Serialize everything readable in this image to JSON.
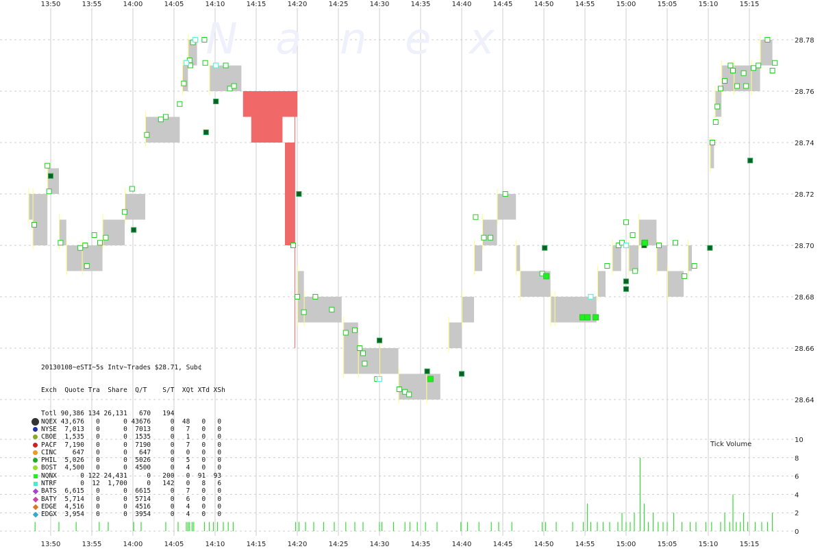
{
  "watermark": "N a n e x",
  "time_labels": [
    "13:50",
    "13:55",
    "14:00",
    "14:05",
    "14:10",
    "14:15",
    "14:20",
    "14:25",
    "14:30",
    "14:35",
    "14:40",
    "14:45",
    "14:50",
    "14:55",
    "15:00",
    "15:05",
    "15:10",
    "15:15"
  ],
  "price_labels": [
    "28.78",
    "28.76",
    "28.74",
    "28.72",
    "28.70",
    "28.68",
    "28.66",
    "28.64"
  ],
  "volume_labels": [
    "10",
    "8",
    "6",
    "4",
    "2",
    "0"
  ],
  "volume_title": "Tick Volume",
  "colors": {
    "grid": "#cccccc",
    "quote_gray": "#c8c8c8",
    "halt_red": "#f06868",
    "trade_green": "#22cc22",
    "trade_dark": "#0d5e2a",
    "cyan": "#5ff0d8",
    "yellow": "#ffff80"
  },
  "stats": {
    "header1": "20130108~eSTI~5s Intv~Trades $28.71, Sub¢",
    "header2": "Exch  Quote Tra  Share  Q/T    S/T  XQt XTd XSh",
    "rows": [
      {
        "text": "Totl 90,386 134 26,131   670   194",
        "color": null,
        "shape": "none"
      },
      {
        "text": "NQEX 43,676   0      0 43676     0  48   0   0",
        "color": "#333333",
        "shape": "big"
      },
      {
        "text": "NYSE  7,013   0      0  7013     0   7   0   0",
        "color": "#2233aa",
        "shape": "dot"
      },
      {
        "text": "CBOE  1,535   0      0  1535     0   1   0   0",
        "color": "#88aa22",
        "shape": "dot"
      },
      {
        "text": "PACF  7,190   0      0  7190     0   7   0   0",
        "color": "#cc2222",
        "shape": "dot"
      },
      {
        "text": "CINC    647   0      0   647     0   0   0   0",
        "color": "#ee9922",
        "shape": "dot"
      },
      {
        "text": "PHIL  5,026   0      0  5026     0   5   0   0",
        "color": "#22aa22",
        "shape": "dot"
      },
      {
        "text": "BOST  4,500   0      0  4500     0   4   0   0",
        "color": "#99dd33",
        "shape": "dot"
      },
      {
        "text": "NQNX      0 122 24,431     0   200   0  91  93",
        "color": "#22ee22",
        "shape": "square"
      },
      {
        "text": "NTRF      0  12  1,700     0   142   0   8   6",
        "color": "#44eecc",
        "shape": "square"
      },
      {
        "text": "BATS  6,615   0      0  6615     0   7   0   0",
        "color": "#aa44cc",
        "shape": "diamond"
      },
      {
        "text": "BATY  5,714   0      0  5714     0   6   0   0",
        "color": "#cc44aa",
        "shape": "diamond"
      },
      {
        "text": "EDGE  4,516   0      0  4516     0   4   0   0",
        "color": "#dd7722",
        "shape": "diamond"
      },
      {
        "text": "EDGX  3,954   0      0  3954     0   4   0   0",
        "color": "#33aacc",
        "shape": "diamond"
      }
    ]
  },
  "chart_data": {
    "type": "line",
    "title": "20130108~eSTI~5s Intv~Trades $28.71, Sub¢",
    "x_ticks": [
      "13:50",
      "13:55",
      "14:00",
      "14:05",
      "14:10",
      "14:15",
      "14:20",
      "14:25",
      "14:30",
      "14:35",
      "14:40",
      "14:45",
      "14:50",
      "14:55",
      "15:00",
      "15:05",
      "15:10",
      "15:15"
    ],
    "x_range": [
      "13:47",
      "15:19"
    ],
    "ylim": [
      28.615,
      28.79
    ],
    "volume_ylim": [
      0,
      10
    ],
    "grid": true,
    "quote_bands": [
      {
        "t0": "13:47.3",
        "t1": "13:47.8",
        "lo": 28.71,
        "hi": 28.72
      },
      {
        "t0": "13:47.8",
        "t1": "13:49.6",
        "lo": 28.7,
        "hi": 28.72
      },
      {
        "t0": "13:49.6",
        "t1": "13:51.0",
        "lo": 28.72,
        "hi": 28.73
      },
      {
        "t0": "13:51.0",
        "t1": "13:51.9",
        "lo": 28.7,
        "hi": 28.71
      },
      {
        "t0": "13:51.9",
        "t1": "13:53.8",
        "lo": 28.69,
        "hi": 28.7
      },
      {
        "t0": "13:53.8",
        "t1": "13:56.3",
        "lo": 28.69,
        "hi": 28.7
      },
      {
        "t0": "13:56.3",
        "t1": "13:59.0",
        "lo": 28.7,
        "hi": 28.71
      },
      {
        "t0": "13:59.0",
        "t1": "14:01.5",
        "lo": 28.71,
        "hi": 28.72
      },
      {
        "t0": "14:01.5",
        "t1": "14:05.7",
        "lo": 28.74,
        "hi": 28.75
      },
      {
        "t0": "14:06.0",
        "t1": "14:06.7",
        "lo": 28.76,
        "hi": 28.77
      },
      {
        "t0": "14:06.7",
        "t1": "14:07.8",
        "lo": 28.77,
        "hi": 28.78
      },
      {
        "t0": "14:09.3",
        "t1": "14:13.2",
        "lo": 28.76,
        "hi": 28.77
      },
      {
        "t0": "14:20.0",
        "t1": "14:20.8",
        "lo": 28.67,
        "hi": 28.69
      },
      {
        "t0": "14:20.8",
        "t1": "14:25.4",
        "lo": 28.67,
        "hi": 28.68
      },
      {
        "t0": "14:25.6",
        "t1": "14:27.4",
        "lo": 28.65,
        "hi": 28.67
      },
      {
        "t0": "14:27.4",
        "t1": "14:30.0",
        "lo": 28.65,
        "hi": 28.66
      },
      {
        "t0": "14:30.0",
        "t1": "14:32.3",
        "lo": 28.65,
        "hi": 28.66
      },
      {
        "t0": "14:32.3",
        "t1": "14:35.7",
        "lo": 28.64,
        "hi": 28.65
      },
      {
        "t0": "14:35.7",
        "t1": "14:37.4",
        "lo": 28.64,
        "hi": 28.65
      },
      {
        "t0": "14:38.4",
        "t1": "14:40.0",
        "lo": 28.66,
        "hi": 28.67
      },
      {
        "t0": "14:40.0",
        "t1": "14:41.5",
        "lo": 28.67,
        "hi": 28.68
      },
      {
        "t0": "14:41.5",
        "t1": "14:42.5",
        "lo": 28.69,
        "hi": 28.7
      },
      {
        "t0": "14:42.5",
        "t1": "14:44.3",
        "lo": 28.7,
        "hi": 28.71
      },
      {
        "t0": "14:44.3",
        "t1": "14:46.6",
        "lo": 28.71,
        "hi": 28.72
      },
      {
        "t0": "14:46.6",
        "t1": "14:47.1",
        "lo": 28.69,
        "hi": 28.7
      },
      {
        "t0": "14:47.1",
        "t1": "14:50.8",
        "lo": 28.68,
        "hi": 28.69
      },
      {
        "t0": "14:50.8",
        "t1": "14:51.3",
        "lo": 28.67,
        "hi": 28.68
      },
      {
        "t0": "14:51.3",
        "t1": "14:56.4",
        "lo": 28.67,
        "hi": 28.68
      },
      {
        "t0": "14:56.5",
        "t1": "14:57.5",
        "lo": 28.68,
        "hi": 28.69
      },
      {
        "t0": "14:58.3",
        "t1": "14:59.4",
        "lo": 28.69,
        "hi": 28.7
      },
      {
        "t0": "15:00.3",
        "t1": "15:01.5",
        "lo": 28.69,
        "hi": 28.7
      },
      {
        "t0": "15:01.5",
        "t1": "15:03.7",
        "lo": 28.7,
        "hi": 28.71
      },
      {
        "t0": "15:03.7",
        "t1": "15:05.0",
        "lo": 28.69,
        "hi": 28.7
      },
      {
        "t0": "15:05.0",
        "t1": "15:07.0",
        "lo": 28.68,
        "hi": 28.69
      },
      {
        "t0": "15:07.5",
        "t1": "15:08.0",
        "lo": 28.69,
        "hi": 28.7
      },
      {
        "t0": "15:10.2",
        "t1": "15:10.7",
        "lo": 28.73,
        "hi": 28.74
      },
      {
        "t0": "15:10.8",
        "t1": "15:11.6",
        "lo": 28.75,
        "hi": 28.76
      },
      {
        "t0": "15:11.6",
        "t1": "15:13.1",
        "lo": 28.76,
        "hi": 28.77
      },
      {
        "t0": "15:13.1",
        "t1": "15:15.2",
        "lo": 28.76,
        "hi": 28.77
      },
      {
        "t0": "15:15.2",
        "t1": "15:16.3",
        "lo": 28.76,
        "hi": 28.77
      },
      {
        "t0": "15:16.3",
        "t1": "15:17.8",
        "lo": 28.77,
        "hi": 28.78
      }
    ],
    "halt_region": [
      {
        "t0": "14:13.4",
        "t1": "14:20.0",
        "lo": 28.75,
        "hi": 28.76
      },
      {
        "t0": "14:14.4",
        "t1": "14:18.2",
        "lo": 28.74,
        "hi": 28.75
      },
      {
        "t0": "14:18.5",
        "t1": "14:19.7",
        "lo": 28.7,
        "hi": 28.74
      }
    ],
    "series": [
      {
        "name": "NQNX",
        "points": [
          [
            "13:48.0",
            28.708
          ],
          [
            "13:49.6",
            28.731
          ],
          [
            "13:49.8",
            28.721
          ],
          [
            "13:51.2",
            28.701
          ],
          [
            "13:53.6",
            28.699
          ],
          [
            "13:54.2",
            28.7
          ],
          [
            "13:54.4",
            28.692
          ],
          [
            "13:55.3",
            28.704
          ],
          [
            "13:56.0",
            28.701
          ],
          [
            "13:56.7",
            28.703
          ],
          [
            "13:59.0",
            28.713
          ],
          [
            "13:59.9",
            28.722
          ],
          [
            "14:01.7",
            28.743
          ],
          [
            "14:03.4",
            28.749
          ],
          [
            "14:04.0",
            28.75
          ],
          [
            "14:05.7",
            28.755
          ],
          [
            "14:06.2",
            28.763
          ],
          [
            "14:06.5",
            28.771
          ],
          [
            "14:06.9",
            28.772
          ],
          [
            "14:07.0",
            28.77
          ],
          [
            "14:07.3",
            28.779
          ],
          [
            "14:08.7",
            28.78
          ],
          [
            "14:08.8",
            28.771
          ],
          [
            "14:11.3",
            28.77
          ],
          [
            "14:11.8",
            28.761
          ],
          [
            "14:12.3",
            28.762
          ],
          [
            "14:19.5",
            28.7
          ],
          [
            "14:20.0",
            28.68
          ],
          [
            "14:20.8",
            28.674
          ],
          [
            "14:22.2",
            28.68
          ],
          [
            "14:24.2",
            28.675
          ],
          [
            "14:25.9",
            28.666
          ],
          [
            "14:27.0",
            28.667
          ],
          [
            "14:27.6",
            28.66
          ],
          [
            "14:28.0",
            28.658
          ],
          [
            "14:28.2",
            28.654
          ],
          [
            "14:29.7",
            28.648
          ],
          [
            "14:32.4",
            28.644
          ],
          [
            "14:33.1",
            28.643
          ],
          [
            "14:33.6",
            28.642
          ],
          [
            "14:41.7",
            28.711
          ],
          [
            "14:42.7",
            28.703
          ],
          [
            "14:43.5",
            28.703
          ],
          [
            "14:45.3",
            28.72
          ],
          [
            "14:49.8",
            28.689
          ],
          [
            "14:57.7",
            28.692
          ],
          [
            "14:59.1",
            28.7
          ],
          [
            "14:59.5",
            28.701
          ],
          [
            "15:00.0",
            28.709
          ],
          [
            "15:00.8",
            28.704
          ],
          [
            "15:01.1",
            28.69
          ],
          [
            "15:02.2",
            28.701
          ],
          [
            "15:04.0",
            28.7
          ],
          [
            "15:06.0",
            28.701
          ],
          [
            "15:07.1",
            28.688
          ],
          [
            "15:08.3",
            28.692
          ],
          [
            "15:10.5",
            28.74
          ],
          [
            "15:10.9",
            28.748
          ],
          [
            "15:11.1",
            28.754
          ],
          [
            "15:11.5",
            28.761
          ],
          [
            "15:12.0",
            28.764
          ],
          [
            "15:12.7",
            28.77
          ],
          [
            "15:13.0",
            28.768
          ],
          [
            "15:13.5",
            28.762
          ],
          [
            "15:14.3",
            28.767
          ],
          [
            "15:14.6",
            28.762
          ],
          [
            "15:15.5",
            28.769
          ],
          [
            "15:16.1",
            28.77
          ],
          [
            "15:17.2",
            28.78
          ],
          [
            "15:17.8",
            28.768
          ],
          [
            "15:18.1",
            28.771
          ]
        ]
      },
      {
        "name": "NTRF",
        "points": [
          [
            "14:06.5",
            28.771
          ],
          [
            "14:07.6",
            28.78
          ],
          [
            "14:10.1",
            28.77
          ],
          [
            "14:30.0",
            28.648
          ],
          [
            "14:55.7",
            28.68
          ],
          [
            "15:00.0",
            28.7
          ]
        ]
      },
      {
        "name": "NQEX",
        "points": [
          [
            "13:50.0",
            28.727
          ],
          [
            "14:00.1",
            28.706
          ],
          [
            "14:08.9",
            28.744
          ],
          [
            "14:10.1",
            28.756
          ],
          [
            "14:20.2",
            28.72
          ],
          [
            "14:30.0",
            28.663
          ],
          [
            "14:35.8",
            28.651
          ],
          [
            "14:40.0",
            28.65
          ],
          [
            "14:50.1",
            28.699
          ],
          [
            "15:00.0",
            28.683
          ],
          [
            "15:00.0",
            28.686
          ],
          [
            "15:02.2",
            28.7
          ],
          [
            "15:10.2",
            28.699
          ],
          [
            "15:15.1",
            28.733
          ]
        ]
      },
      {
        "name": "NQNX (filled)",
        "points": [
          [
            "14:36.2",
            28.648
          ],
          [
            "14:50.3",
            28.688
          ],
          [
            "14:54.7",
            28.672
          ],
          [
            "14:55.3",
            28.672
          ],
          [
            "14:56.3",
            28.672
          ],
          [
            "15:02.3",
            28.701
          ]
        ]
      }
    ],
    "tick_volume": [
      [
        "13:48.1",
        1
      ],
      [
        "13:51.0",
        1
      ],
      [
        "13:53.1",
        1
      ],
      [
        "13:55.9",
        1
      ],
      [
        "13:57.0",
        1
      ],
      [
        "14:00.1",
        1
      ],
      [
        "14:01.0",
        1
      ],
      [
        "14:04.0",
        1
      ],
      [
        "14:05.5",
        1
      ],
      [
        "14:06.5",
        1
      ],
      [
        "14:06.7",
        1
      ],
      [
        "14:06.9",
        1
      ],
      [
        "14:07.2",
        1
      ],
      [
        "14:07.4",
        1
      ],
      [
        "14:08.7",
        1
      ],
      [
        "14:09.3",
        1
      ],
      [
        "14:09.8",
        1
      ],
      [
        "14:10.3",
        1
      ],
      [
        "14:11.0",
        1
      ],
      [
        "14:11.6",
        1
      ],
      [
        "14:12.2",
        1
      ],
      [
        "14:19.8",
        1
      ],
      [
        "14:20.2",
        1
      ],
      [
        "14:21.0",
        1
      ],
      [
        "14:22.0",
        1
      ],
      [
        "14:23.2",
        1
      ],
      [
        "14:24.5",
        1
      ],
      [
        "14:25.9",
        1
      ],
      [
        "14:27.0",
        1
      ],
      [
        "14:28.0",
        1
      ],
      [
        "14:30.0",
        1
      ],
      [
        "14:30.3",
        1
      ],
      [
        "14:31.7",
        1
      ],
      [
        "14:33.1",
        1
      ],
      [
        "14:33.7",
        1
      ],
      [
        "14:34.6",
        1
      ],
      [
        "14:35.6",
        1
      ],
      [
        "14:37.0",
        1
      ],
      [
        "14:39.9",
        1
      ],
      [
        "14:40.7",
        1
      ],
      [
        "14:42.1",
        1
      ],
      [
        "14:43.6",
        1
      ],
      [
        "14:44.5",
        1
      ],
      [
        "14:46.1",
        1
      ],
      [
        "14:49.8",
        1
      ],
      [
        "14:50.2",
        1
      ],
      [
        "14:51.5",
        1
      ],
      [
        "14:53.5",
        1
      ],
      [
        "14:54.8",
        1
      ],
      [
        "14:55.3",
        3
      ],
      [
        "14:55.7",
        1
      ],
      [
        "14:56.5",
        1
      ],
      [
        "14:57.2",
        1
      ],
      [
        "14:58.0",
        1
      ],
      [
        "14:59.0",
        1
      ],
      [
        "14:59.5",
        2
      ],
      [
        "15:00.0",
        1
      ],
      [
        "15:00.5",
        1
      ],
      [
        "15:01.0",
        2
      ],
      [
        "15:01.7",
        8
      ],
      [
        "15:02.2",
        3
      ],
      [
        "15:02.7",
        1
      ],
      [
        "15:03.3",
        2
      ],
      [
        "15:03.9",
        1
      ],
      [
        "15:04.5",
        1
      ],
      [
        "15:05.0",
        1
      ],
      [
        "15:05.8",
        2
      ],
      [
        "15:06.8",
        1
      ],
      [
        "15:07.8",
        1
      ],
      [
        "15:08.5",
        1
      ],
      [
        "15:09.7",
        1
      ],
      [
        "15:10.4",
        1
      ],
      [
        "15:11.5",
        1
      ],
      [
        "15:12.0",
        2
      ],
      [
        "15:12.6",
        1
      ],
      [
        "15:13.0",
        4
      ],
      [
        "15:13.4",
        1
      ],
      [
        "15:13.9",
        1
      ],
      [
        "15:14.3",
        2
      ],
      [
        "15:14.8",
        1
      ],
      [
        "15:15.7",
        1
      ],
      [
        "15:16.5",
        1
      ],
      [
        "15:17.2",
        1
      ],
      [
        "15:17.8",
        2
      ]
    ]
  }
}
